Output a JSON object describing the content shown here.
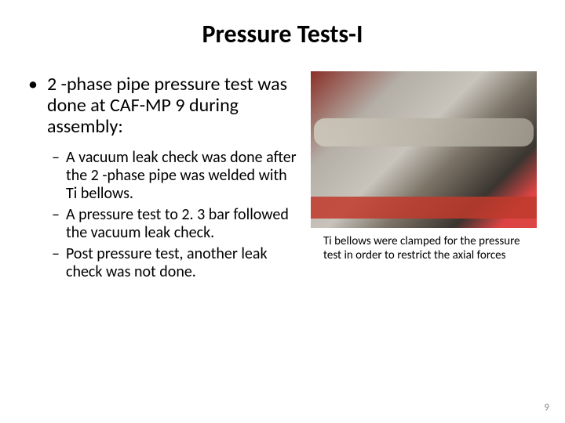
{
  "title": "Pressure Tests-I",
  "main_bullet": "2 -phase pipe pressure test was done at CAF-MP 9 during assembly:",
  "sub_bullets": [
    "A vacuum leak check was done after the 2 -phase pipe was welded with Ti bellows.",
    "A pressure test to 2. 3 bar followed the vacuum leak check.",
    "Post pressure test, another leak check was not done."
  ],
  "caption": "Ti bellows were clamped for the pressure test in order to restrict the axial forces",
  "page_number": "9",
  "bullet_char": "•",
  "dash_char": "–"
}
